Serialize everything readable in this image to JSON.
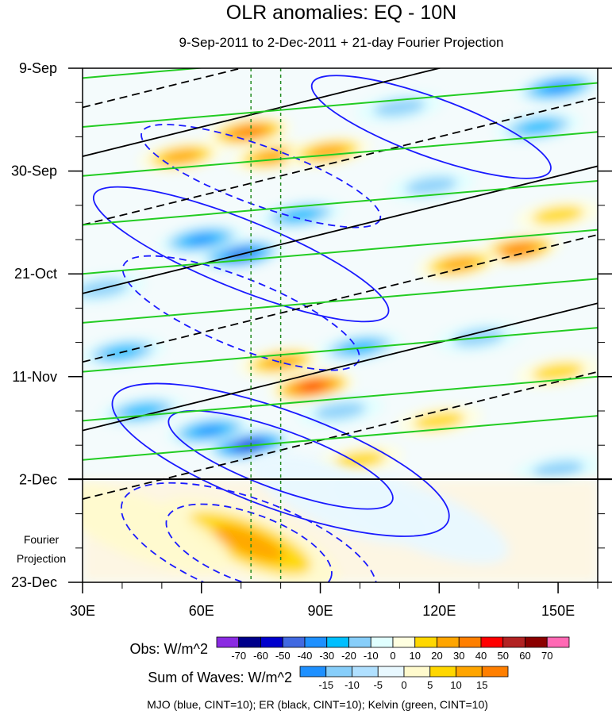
{
  "chart_data": {
    "type": "heatmap",
    "title": "OLR anomalies: EQ - 10N",
    "subtitle": "9-Sep-2011 to 2-Dec-2011 + 21-day Fourier Projection",
    "x_ticks": [
      {
        "value": 30,
        "label": "30E"
      },
      {
        "value": 60,
        "label": "60E"
      },
      {
        "value": 90,
        "label": "90E"
      },
      {
        "value": 120,
        "label": "120E"
      },
      {
        "value": 150,
        "label": "150E"
      }
    ],
    "xlim": [
      30,
      160
    ],
    "y_ticks": [
      {
        "day": 0,
        "label": "9-Sep"
      },
      {
        "day": 21,
        "label": "30-Sep"
      },
      {
        "day": 42,
        "label": "21-Oct"
      },
      {
        "day": 63,
        "label": "11-Nov"
      },
      {
        "day": 84,
        "label": "2-Dec"
      },
      {
        "day": 105,
        "label": "23-Dec"
      }
    ],
    "ylim_days": [
      0,
      105
    ],
    "forecast_start_day": 84,
    "forecast_label": "Fourier\nProjection",
    "reference_lons": [
      72.5,
      80
    ],
    "obs_colorbar": {
      "label": "Obs: W/m^2",
      "levels": [
        -70,
        -60,
        -50,
        -40,
        -30,
        -20,
        -10,
        0,
        10,
        20,
        30,
        40,
        50,
        60,
        70
      ],
      "colors": [
        "#8a2be2",
        "#00008b",
        "#0000cd",
        "#4169e1",
        "#1e90ff",
        "#00bfff",
        "#87cefa",
        "#e0ffff",
        "#ffffe0",
        "#ffd700",
        "#ffa500",
        "#ff7f00",
        "#ff0000",
        "#b22222",
        "#8b0000",
        "#ff69b4"
      ]
    },
    "waves_colorbar": {
      "label": "Sum of Waves: W/m^2",
      "levels": [
        -15,
        -10,
        -5,
        0,
        5,
        10,
        15
      ],
      "colors": [
        "#1e90ff",
        "#87cefa",
        "#b0e0ff",
        "#e8f8ff",
        "#fffacd",
        "#ffd700",
        "#ffa500",
        "#ff7f00"
      ]
    },
    "contour_note": "MJO (blue, CINT=10); ER (black, CINT=10); Kelvin (green, CINT=10)",
    "anomaly_centers": [
      {
        "lon": 72,
        "day": 13,
        "v": 45
      },
      {
        "lon": 78,
        "day": 18,
        "v": 35
      },
      {
        "lon": 92,
        "day": 17,
        "v": 30
      },
      {
        "lon": 70,
        "day": 38,
        "v": -50
      },
      {
        "lon": 60,
        "day": 35,
        "v": -40
      },
      {
        "lon": 85,
        "day": 30,
        "v": -30
      },
      {
        "lon": 88,
        "day": 65,
        "v": 55
      },
      {
        "lon": 80,
        "day": 60,
        "v": 30
      },
      {
        "lon": 72,
        "day": 77,
        "v": -60
      },
      {
        "lon": 62,
        "day": 74,
        "v": -40
      },
      {
        "lon": 95,
        "day": 70,
        "v": -25
      },
      {
        "lon": 140,
        "day": 37,
        "v": 40
      },
      {
        "lon": 125,
        "day": 40,
        "v": 30
      },
      {
        "lon": 150,
        "day": 4,
        "v": -40
      },
      {
        "lon": 145,
        "day": 12,
        "v": -35
      },
      {
        "lon": 118,
        "day": 24,
        "v": -25
      },
      {
        "lon": 100,
        "day": 57,
        "v": -30
      },
      {
        "lon": 40,
        "day": 58,
        "v": -35
      },
      {
        "lon": 45,
        "day": 70,
        "v": -30
      },
      {
        "lon": 55,
        "day": 18,
        "v": 30
      },
      {
        "lon": 130,
        "day": 55,
        "v": -20
      },
      {
        "lon": 120,
        "day": 72,
        "v": 25
      },
      {
        "lon": 150,
        "day": 62,
        "v": 25
      },
      {
        "lon": 150,
        "day": 82,
        "v": -25
      },
      {
        "lon": 110,
        "day": 8,
        "v": -25
      },
      {
        "lon": 35,
        "day": 45,
        "v": -20
      },
      {
        "lon": 100,
        "day": 80,
        "v": 20
      },
      {
        "lon": 150,
        "day": 30,
        "v": 25
      }
    ],
    "projection_centers": [
      {
        "lon": 72,
        "day": 97,
        "v": 16
      },
      {
        "lon": 45,
        "day": 94,
        "v": 8
      },
      {
        "lon": 95,
        "day": 88,
        "v": -8
      },
      {
        "lon": 115,
        "day": 92,
        "v": -6
      }
    ],
    "mjo_contours": [
      {
        "lon": 72,
        "day": 98,
        "rx": 22,
        "ry": 7,
        "rot": 20,
        "v": 20
      },
      {
        "lon": 72,
        "day": 98,
        "rx": 34,
        "ry": 10,
        "rot": 20,
        "v": 10
      },
      {
        "lon": 80,
        "day": 80,
        "rx": 30,
        "ry": 6,
        "rot": 20,
        "v": -20
      },
      {
        "lon": 80,
        "day": 80,
        "rx": 45,
        "ry": 10,
        "rot": 20,
        "v": -10
      },
      {
        "lon": 70,
        "day": 50,
        "rx": 32,
        "ry": 7,
        "rot": 22,
        "v": 10
      },
      {
        "lon": 70,
        "day": 38,
        "rx": 40,
        "ry": 7,
        "rot": 22,
        "v": -10
      },
      {
        "lon": 75,
        "day": 22,
        "rx": 32,
        "ry": 6,
        "rot": 20,
        "v": 10
      },
      {
        "lon": 118,
        "day": 12,
        "rx": 32,
        "ry": 6,
        "rot": 20,
        "v": -10
      }
    ],
    "er_lines": [
      {
        "day_at_30": 8,
        "dash": true
      },
      {
        "day_at_30": 18,
        "dash": false
      },
      {
        "day_at_30": 32,
        "dash": true
      },
      {
        "day_at_30": 46,
        "dash": false
      },
      {
        "day_at_30": 60,
        "dash": true
      },
      {
        "day_at_30": 74,
        "dash": false
      },
      {
        "day_at_30": 88,
        "dash": true
      }
    ],
    "kelvin_lines": [
      {
        "day_at_30": 2
      },
      {
        "day_at_30": 12
      },
      {
        "day_at_30": 22
      },
      {
        "day_at_30": 32
      },
      {
        "day_at_30": 42
      },
      {
        "day_at_30": 52
      },
      {
        "day_at_30": 62
      },
      {
        "day_at_30": 72
      },
      {
        "day_at_30": 80
      }
    ]
  }
}
